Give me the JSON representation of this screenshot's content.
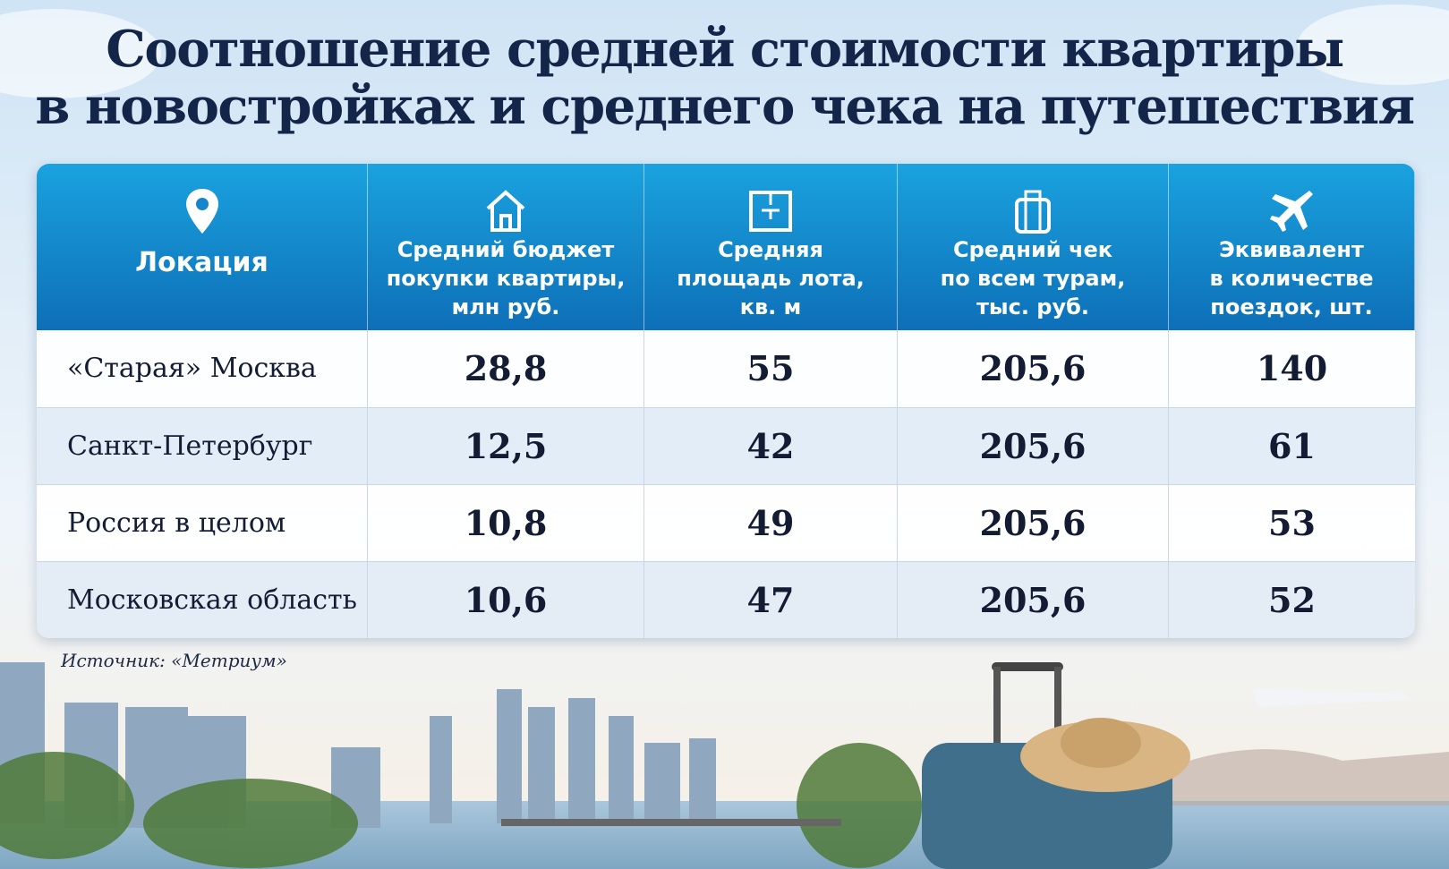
{
  "header": {
    "title_lines": [
      "Соотношение средней стоимости квартиры",
      "в новостройках и среднего чека на путешествия"
    ]
  },
  "table": {
    "columns": [
      {
        "lines": [
          "Локация"
        ]
      },
      {
        "lines": [
          "Средний бюджет",
          "покупки квартиры,",
          "млн руб."
        ]
      },
      {
        "lines": [
          "Средняя",
          "площадь лота,",
          "кв. м"
        ]
      },
      {
        "lines": [
          "Средний чек",
          "по всем турам,",
          "тыс. руб."
        ]
      },
      {
        "lines": [
          "Эквивалент",
          "в количестве",
          "поездок, шт."
        ]
      }
    ],
    "rows": [
      [
        "«Старая» Москва",
        "28,8",
        "55",
        "205,6",
        "140"
      ],
      [
        "Санкт-Петербург",
        "12,5",
        "42",
        "205,6",
        "61"
      ],
      [
        "Россия в целом",
        "10,8",
        "49",
        "205,6",
        "53"
      ],
      [
        "Московская область",
        "10,6",
        "47",
        "205,6",
        "52"
      ]
    ]
  },
  "footer": {
    "source": "Источник: «Метриум»"
  }
}
